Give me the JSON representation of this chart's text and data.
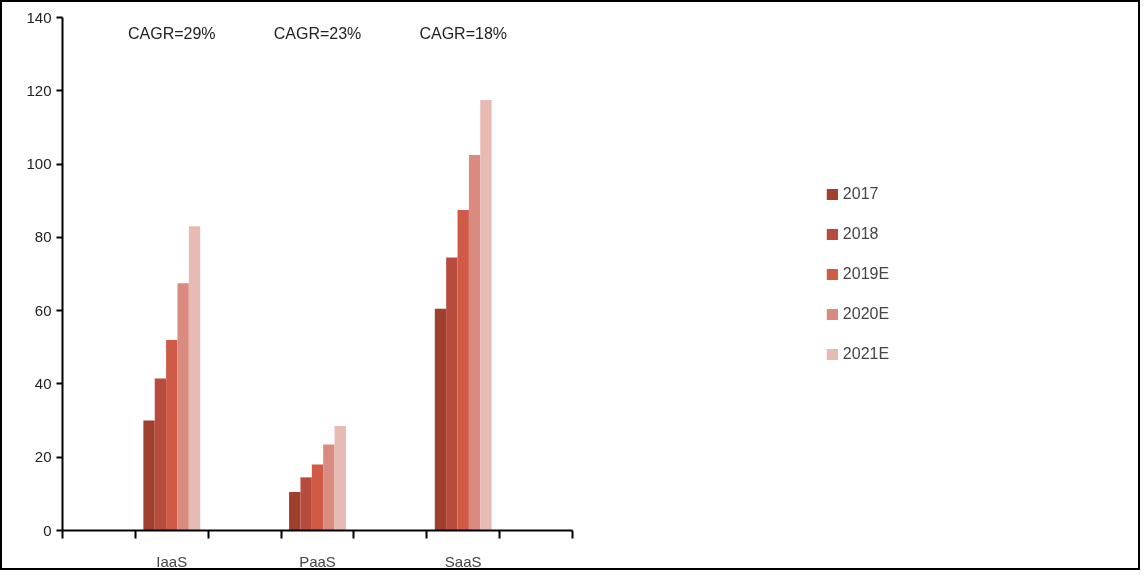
{
  "chart_data": {
    "type": "bar",
    "categories": [
      null,
      "IaaS",
      null,
      "PaaS",
      null,
      "SaaS",
      null
    ],
    "series": [
      {
        "name": "2017",
        "color": "#a03f2e",
        "values": [
          null,
          30,
          null,
          10.5,
          null,
          60.5,
          null
        ]
      },
      {
        "name": "2018",
        "color": "#b84c3c",
        "values": [
          null,
          41.5,
          null,
          14.5,
          null,
          74.5,
          null
        ]
      },
      {
        "name": "2019E",
        "color": "#cf5a45",
        "values": [
          null,
          52,
          null,
          18,
          null,
          87.5,
          null
        ]
      },
      {
        "name": "2020E",
        "color": "#d98b80",
        "values": [
          null,
          67.5,
          null,
          23.5,
          null,
          102.5,
          null
        ]
      },
      {
        "name": "2021E",
        "color": "#e8bab4",
        "values": [
          null,
          83,
          null,
          28.5,
          null,
          117.5,
          null
        ]
      }
    ],
    "annotations": [
      "CAGR=29%",
      "CAGR=23%",
      "CAGR=18%"
    ],
    "ylim": [
      0,
      140
    ],
    "yticks": [
      0,
      20,
      40,
      60,
      80,
      100,
      120,
      140
    ],
    "grid": false,
    "legend": "right"
  }
}
